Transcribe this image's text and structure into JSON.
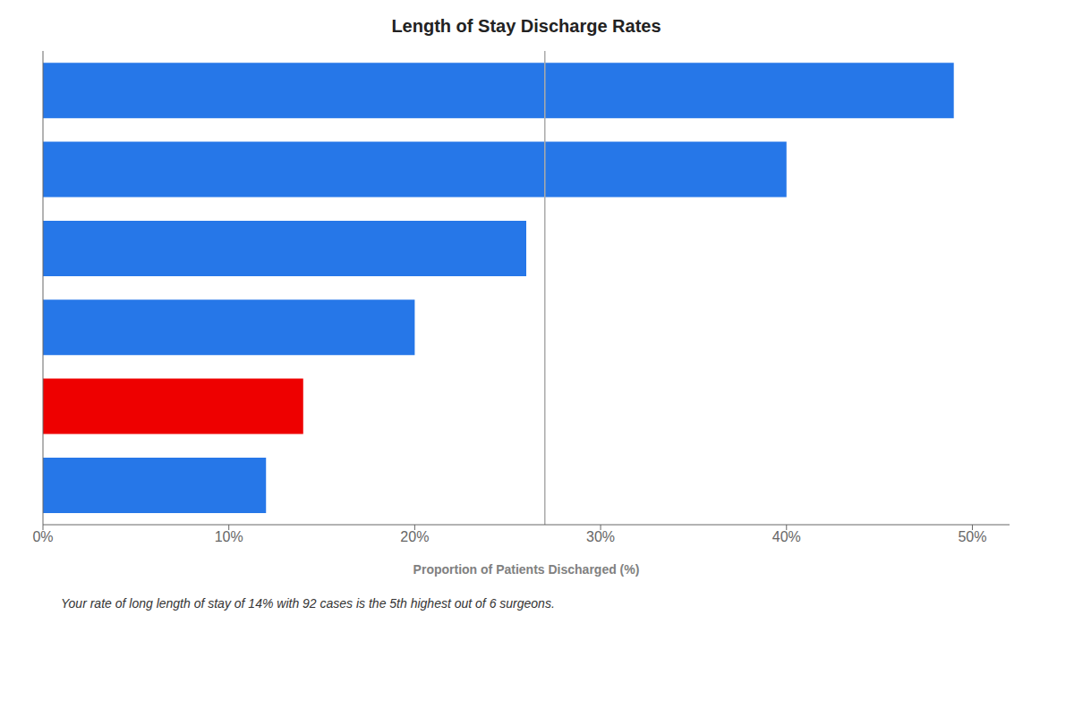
{
  "chart_data": {
    "type": "bar",
    "title": "Length of Stay Discharge Rates",
    "xlabel": "Proportion of Patients Discharged (%)",
    "orientation": "horizontal",
    "categories": [
      null,
      null,
      null,
      null,
      null,
      null
    ],
    "values": [
      49,
      40,
      26,
      20,
      14,
      12
    ],
    "colors": [
      "#2677E8",
      "#2677E8",
      "#2677E8",
      "#2677E8",
      "#EE0000",
      "#2677E8"
    ],
    "reference_line": 27,
    "xlim": [
      0,
      52
    ],
    "xticks": [
      {
        "value": 0,
        "label": "0%"
      },
      {
        "value": 10,
        "label": "10%"
      },
      {
        "value": 20,
        "label": "20%"
      },
      {
        "value": 30,
        "label": "30%"
      },
      {
        "value": 40,
        "label": "40%"
      },
      {
        "value": 50,
        "label": "50%"
      }
    ],
    "grid": false,
    "tick_labels": "x",
    "annotations": [
      "Your rate of long length of stay of 14% with 92 cases is the 5th highest out of 6 surgeons."
    ]
  }
}
